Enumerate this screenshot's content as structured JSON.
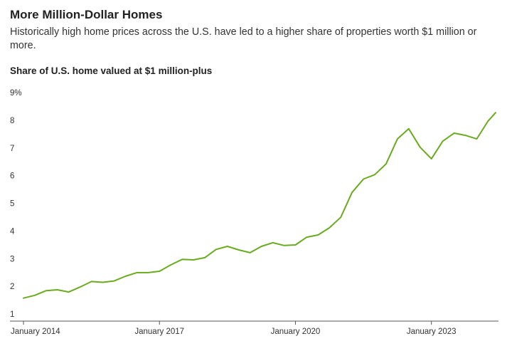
{
  "chart_data": {
    "type": "line",
    "title": "More Million-Dollar Homes",
    "subtitle": "Historically high home prices across the U.S. have led to a higher share of properties worth $1 million or more.",
    "chart_title": "Share of U.S. home valued at $1 million-plus",
    "x": [
      "2014-01",
      "2014-04",
      "2014-07",
      "2014-10",
      "2015-01",
      "2015-04",
      "2015-07",
      "2015-10",
      "2016-01",
      "2016-04",
      "2016-07",
      "2016-10",
      "2017-01",
      "2017-04",
      "2017-07",
      "2017-10",
      "2018-01",
      "2018-04",
      "2018-07",
      "2018-10",
      "2019-01",
      "2019-04",
      "2019-07",
      "2019-10",
      "2020-01",
      "2020-04",
      "2020-07",
      "2020-10",
      "2021-01",
      "2021-04",
      "2021-07",
      "2021-10",
      "2022-01",
      "2022-04",
      "2022-07",
      "2022-10",
      "2023-01",
      "2023-04",
      "2023-07",
      "2023-10",
      "2024-01",
      "2024-04",
      "2024-06"
    ],
    "series": [
      {
        "name": "Share of U.S. home valued at $1 million-plus",
        "color": "#6aab1f",
        "values": [
          1.6,
          1.7,
          1.87,
          1.9,
          1.82,
          2.0,
          2.2,
          2.17,
          2.22,
          2.39,
          2.52,
          2.52,
          2.57,
          2.8,
          3.0,
          2.98,
          3.06,
          3.36,
          3.47,
          3.34,
          3.24,
          3.47,
          3.6,
          3.5,
          3.52,
          3.8,
          3.88,
          4.14,
          4.52,
          5.42,
          5.9,
          6.06,
          6.45,
          7.35,
          7.72,
          7.05,
          6.63,
          7.27,
          7.56,
          7.48,
          7.35,
          8.0,
          8.3
        ]
      }
    ],
    "xlim": [
      "2014-01",
      "2024-06"
    ],
    "xticks": [
      {
        "value": "2014-01",
        "label": "January 2014"
      },
      {
        "value": "2017-01",
        "label": "January 2017"
      },
      {
        "value": "2020-01",
        "label": "January 2020"
      },
      {
        "value": "2023-01",
        "label": "January 2023"
      }
    ],
    "ylim": [
      1,
      9
    ],
    "yticks": [
      1,
      2,
      3,
      4,
      5,
      6,
      7,
      8,
      {
        "value": 9,
        "label": "9%"
      }
    ],
    "grid": false
  }
}
